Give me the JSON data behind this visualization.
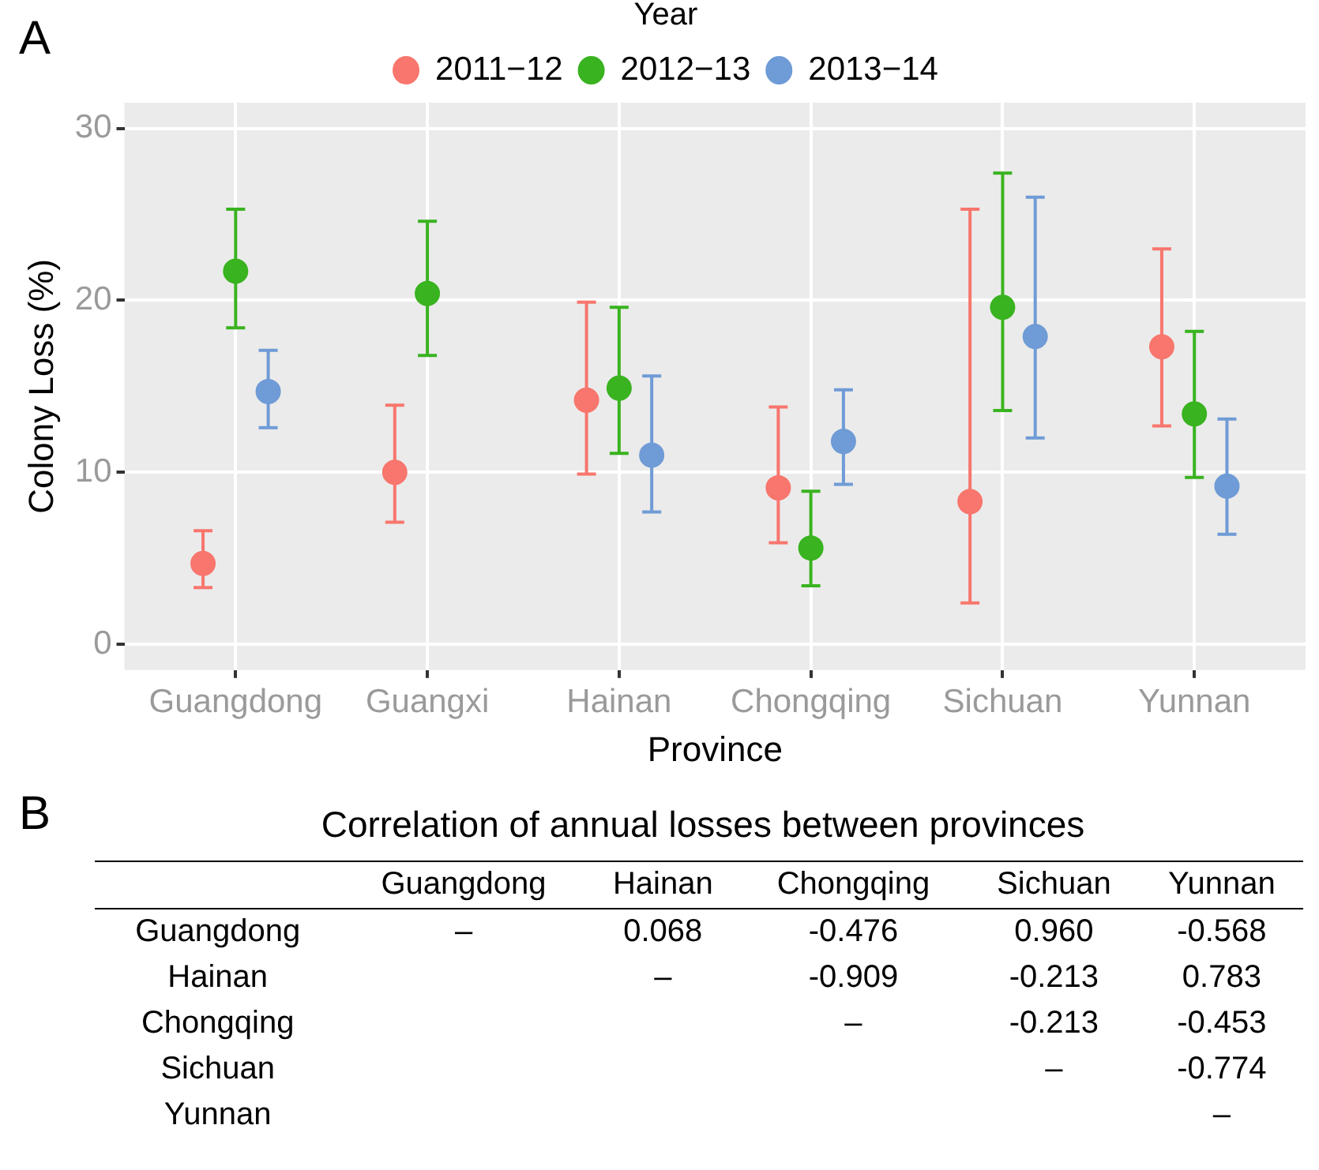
{
  "chart_data": [
    {
      "type": "scatter",
      "xlabel": "Province",
      "ylabel": "Colony Loss (%)",
      "legend_title": "Year",
      "annotations": [
        "A"
      ],
      "categories": [
        "Guangdong",
        "Guangxi",
        "Hainan",
        "Chongqing",
        "Sichuan",
        "Yunnan"
      ],
      "series": [
        {
          "name": "2011−12",
          "color": "#f8766d",
          "values": [
            4.7,
            10.0,
            14.2,
            9.1,
            8.3,
            17.3
          ],
          "errors": [
            [
              3.3,
              6.6
            ],
            [
              7.1,
              13.9
            ],
            [
              9.9,
              19.9
            ],
            [
              5.9,
              13.8
            ],
            [
              2.4,
              25.3
            ],
            [
              12.7,
              23.0
            ]
          ]
        },
        {
          "name": "2012−13",
          "color": "#39b31f",
          "values": [
            21.7,
            20.4,
            14.9,
            5.6,
            19.6,
            13.4
          ],
          "errors": [
            [
              18.4,
              25.3
            ],
            [
              16.8,
              24.6
            ],
            [
              11.1,
              19.6
            ],
            [
              3.4,
              8.9
            ],
            [
              13.6,
              27.4
            ],
            [
              9.7,
              18.2
            ]
          ]
        },
        {
          "name": "2013−14",
          "color": "#6f9bd6",
          "values": [
            14.7,
            null,
            11.0,
            11.8,
            17.9,
            9.2
          ],
          "errors": [
            [
              12.6,
              17.1
            ],
            null,
            [
              7.7,
              15.6
            ],
            [
              9.3,
              14.8
            ],
            [
              12.0,
              26.0
            ],
            [
              6.4,
              13.1
            ]
          ]
        }
      ],
      "ylim": [
        -1.5,
        31.5
      ],
      "yticks": [
        0,
        10,
        20,
        30
      ],
      "grid": true,
      "legend": "top",
      "marker": "circle"
    },
    {
      "type": "heatmap",
      "title": "Correlation of annual losses between provinces",
      "annotations": [
        "B"
      ],
      "categories": [
        "Guangdong",
        "Hainan",
        "Chongqing",
        "Sichuan",
        "Yunnan"
      ],
      "y_categories": [
        "Guangdong",
        "Hainan",
        "Chongqing",
        "Sichuan",
        "Yunnan"
      ],
      "cells": [
        [
          null,
          null,
          null,
          null,
          null
        ],
        [
          null,
          null,
          null,
          null,
          null
        ],
        [
          null,
          null,
          null,
          null,
          null
        ],
        [
          null,
          null,
          null,
          null,
          null
        ],
        [
          null,
          null,
          null,
          null,
          null
        ]
      ],
      "cell_labels": [
        [
          "–",
          "0.068",
          "-0.476",
          "0.960",
          "-0.568"
        ],
        [
          null,
          "–",
          "-0.909",
          "-0.213",
          "0.783"
        ],
        [
          null,
          null,
          "–",
          "-0.213",
          "-0.453"
        ],
        [
          null,
          null,
          null,
          "–",
          "-0.774"
        ],
        [
          null,
          null,
          null,
          null,
          "–"
        ]
      ]
    }
  ]
}
